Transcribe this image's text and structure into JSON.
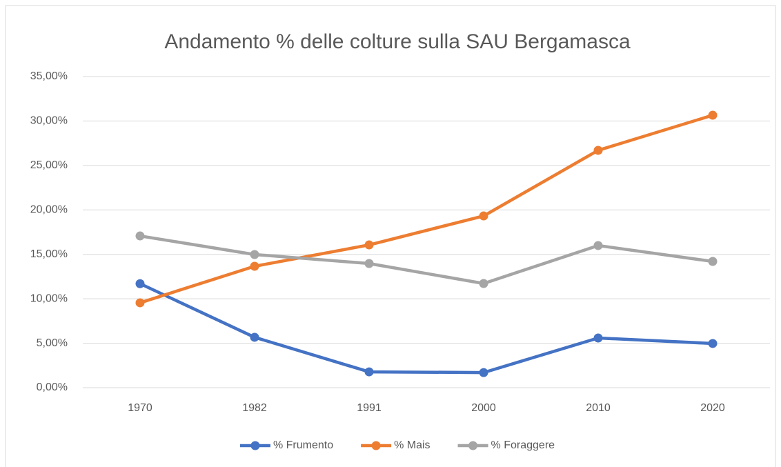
{
  "chart_data": {
    "type": "line",
    "title": "Andamento % delle colture sulla SAU  Bergamasca",
    "categories": [
      "1970",
      "1982",
      "1991",
      "2000",
      "2010",
      "2020"
    ],
    "series": [
      {
        "name": "% Frumento",
        "color": "#4472c4",
        "values": [
          11.7,
          5.67,
          1.78,
          1.7,
          5.59,
          4.97
        ]
      },
      {
        "name": "% Mais",
        "color": "#ed7d31",
        "values": [
          9.55,
          13.66,
          16.06,
          19.32,
          26.7,
          30.65
        ]
      },
      {
        "name": "% Foraggere",
        "color": "#a5a5a5",
        "values": [
          17.07,
          14.98,
          13.97,
          11.72,
          15.99,
          14.2
        ]
      }
    ],
    "ylim": [
      0,
      35
    ],
    "yticks": [
      {
        "value": 0,
        "label": "0,00%"
      },
      {
        "value": 5,
        "label": "5,00%"
      },
      {
        "value": 10,
        "label": "10,00%"
      },
      {
        "value": 15,
        "label": "15,00%"
      },
      {
        "value": 20,
        "label": "20,00%"
      },
      {
        "value": 25,
        "label": "25,00%"
      },
      {
        "value": 30,
        "label": "30,00%"
      },
      {
        "value": 35,
        "label": "35,00%"
      }
    ],
    "grid": true,
    "legend": "bottom"
  }
}
